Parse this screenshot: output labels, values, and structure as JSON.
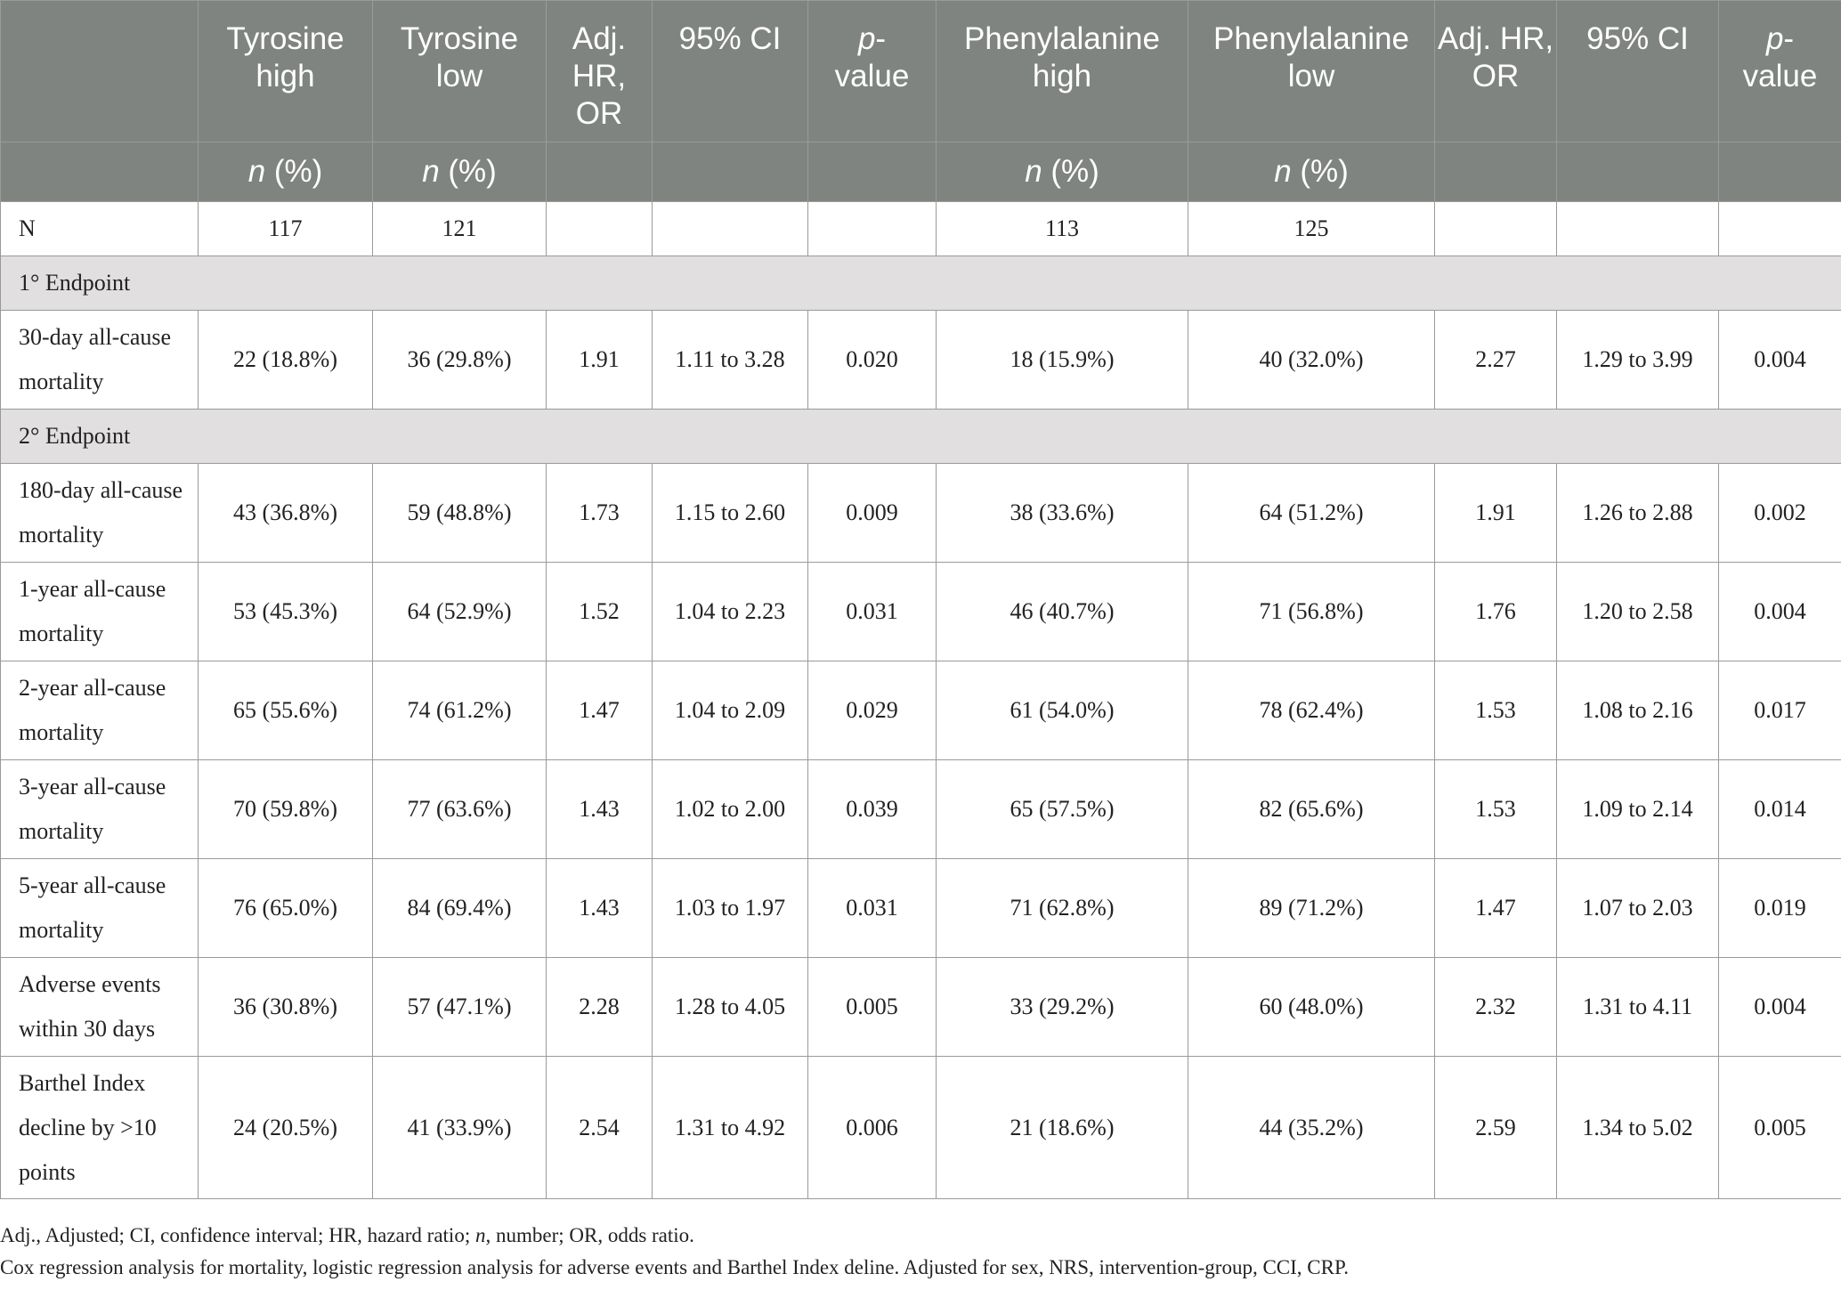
{
  "headers": {
    "blank": "",
    "tyr_high": "Tyrosine high",
    "tyr_low": "Tyrosine low",
    "adj1": "Adj. HR, OR",
    "ci1": "95% CI",
    "p1": "p-value",
    "phe_high": "Phenylalanine high",
    "phe_low": "Phenylalanine low",
    "adj2": "Adj. HR, OR",
    "ci2": "95% CI",
    "p2": "p-value",
    "subheader_n": "n (%)"
  },
  "n_row": {
    "label": "N",
    "tyr_high": "117",
    "tyr_low": "121",
    "phe_high": "113",
    "phe_low": "125"
  },
  "sections": {
    "primary": "1° Endpoint",
    "secondary": "2° Endpoint"
  },
  "rows": [
    {
      "label": "30-day all-cause mortality",
      "tyr_high": "22 (18.8%)",
      "tyr_low": "36 (29.8%)",
      "adj1": "1.91",
      "ci1": "1.11 to 3.28",
      "p1": "0.020",
      "phe_high": "18 (15.9%)",
      "phe_low": "40 (32.0%)",
      "adj2": "2.27",
      "ci2": "1.29 to 3.99",
      "p2": "0.004"
    },
    {
      "label": "180-day all-cause mortality",
      "tyr_high": "43 (36.8%)",
      "tyr_low": "59 (48.8%)",
      "adj1": "1.73",
      "ci1": "1.15 to 2.60",
      "p1": "0.009",
      "phe_high": "38 (33.6%)",
      "phe_low": "64 (51.2%)",
      "adj2": "1.91",
      "ci2": "1.26 to 2.88",
      "p2": "0.002"
    },
    {
      "label": "1-year all-cause mortality",
      "tyr_high": "53 (45.3%)",
      "tyr_low": "64 (52.9%)",
      "adj1": "1.52",
      "ci1": "1.04 to 2.23",
      "p1": "0.031",
      "phe_high": "46 (40.7%)",
      "phe_low": "71 (56.8%)",
      "adj2": "1.76",
      "ci2": "1.20 to 2.58",
      "p2": "0.004"
    },
    {
      "label": "2-year all-cause mortality",
      "tyr_high": "65 (55.6%)",
      "tyr_low": "74 (61.2%)",
      "adj1": "1.47",
      "ci1": "1.04 to 2.09",
      "p1": "0.029",
      "phe_high": "61 (54.0%)",
      "phe_low": "78 (62.4%)",
      "adj2": "1.53",
      "ci2": "1.08 to 2.16",
      "p2": "0.017"
    },
    {
      "label": "3-year all-cause mortality",
      "tyr_high": "70 (59.8%)",
      "tyr_low": "77 (63.6%)",
      "adj1": "1.43",
      "ci1": "1.02 to 2.00",
      "p1": "0.039",
      "phe_high": "65 (57.5%)",
      "phe_low": "82 (65.6%)",
      "adj2": "1.53",
      "ci2": "1.09 to 2.14",
      "p2": "0.014"
    },
    {
      "label": "5-year all-cause mortality",
      "tyr_high": "76 (65.0%)",
      "tyr_low": "84 (69.4%)",
      "adj1": "1.43",
      "ci1": "1.03 to 1.97",
      "p1": "0.031",
      "phe_high": "71 (62.8%)",
      "phe_low": "89 (71.2%)",
      "adj2": "1.47",
      "ci2": "1.07 to 2.03",
      "p2": "0.019"
    },
    {
      "label": "Adverse events within 30 days",
      "tyr_high": "36 (30.8%)",
      "tyr_low": "57 (47.1%)",
      "adj1": "2.28",
      "ci1": "1.28 to 4.05",
      "p1": "0.005",
      "phe_high": "33 (29.2%)",
      "phe_low": "60 (48.0%)",
      "adj2": "2.32",
      "ci2": "1.31 to 4.11",
      "p2": "0.004"
    },
    {
      "label": "Barthel Index decline by >10 points",
      "tyr_high": "24 (20.5%)",
      "tyr_low": "41 (33.9%)",
      "adj1": "2.54",
      "ci1": "1.31 to 4.92",
      "p1": "0.006",
      "phe_high": "21 (18.6%)",
      "phe_low": "44 (35.2%)",
      "adj2": "2.59",
      "ci2": "1.34 to 5.02",
      "p2": "0.005"
    }
  ],
  "notes": {
    "abbrev_part1": "Adj., Adjusted; CI, confidence interval; HR, hazard ratio; ",
    "abbrev_n": "n",
    "abbrev_part2": ", number; OR, odds ratio.",
    "method": "Cox regression analysis for mortality, logistic regression analysis for adverse events and Barthel Index deline. Adjusted for sex, NRS, intervention-group, CCI, CRP."
  }
}
